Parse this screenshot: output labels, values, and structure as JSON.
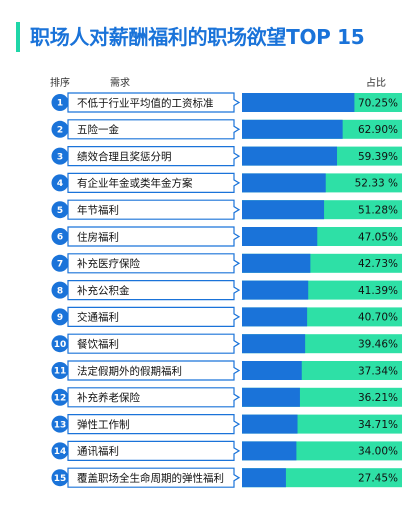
{
  "title": "职场人对薪酬福利的职场欲望TOP 15",
  "headers": {
    "rank": "排序",
    "demand": "需求",
    "pct": "占比"
  },
  "colors": {
    "accent_blue": "#1a73d9",
    "accent_green": "#2ee0a6"
  },
  "chart_data": {
    "type": "bar",
    "orientation": "horizontal",
    "title": "职场人对薪酬福利的职场欲望TOP 15",
    "xlim": [
      0,
      100
    ],
    "categories": [
      "不低于行业平均值的工资标准",
      "五险一金",
      "绩效合理且奖惩分明",
      "有企业年金或类年金方案",
      "年节福利",
      "住房福利",
      "补充医疗保险",
      "补充公积金",
      "交通福利",
      "餐饮福利",
      "法定假期外的假期福利",
      "补充养老保险",
      "弹性工作制",
      "通讯福利",
      "覆盖职场全生命周期的弹性福利"
    ],
    "values": [
      70.25,
      62.9,
      59.39,
      52.33,
      51.28,
      47.05,
      42.73,
      41.39,
      40.7,
      39.46,
      37.34,
      36.21,
      34.71,
      34.0,
      27.45
    ],
    "value_labels": [
      "70.25%",
      "62.90%",
      "59.39%",
      "52.33 %",
      "51.28%",
      "47.05%",
      "42.73%",
      "41.39%",
      "40.70%",
      "39.46%",
      "37.34%",
      "36.21%",
      "34.71%",
      "34.00%",
      "27.45%"
    ],
    "ranks": [
      "1",
      "2",
      "3",
      "4",
      "5",
      "6",
      "7",
      "8",
      "9",
      "10",
      "11",
      "12",
      "13",
      "14",
      "15"
    ]
  }
}
